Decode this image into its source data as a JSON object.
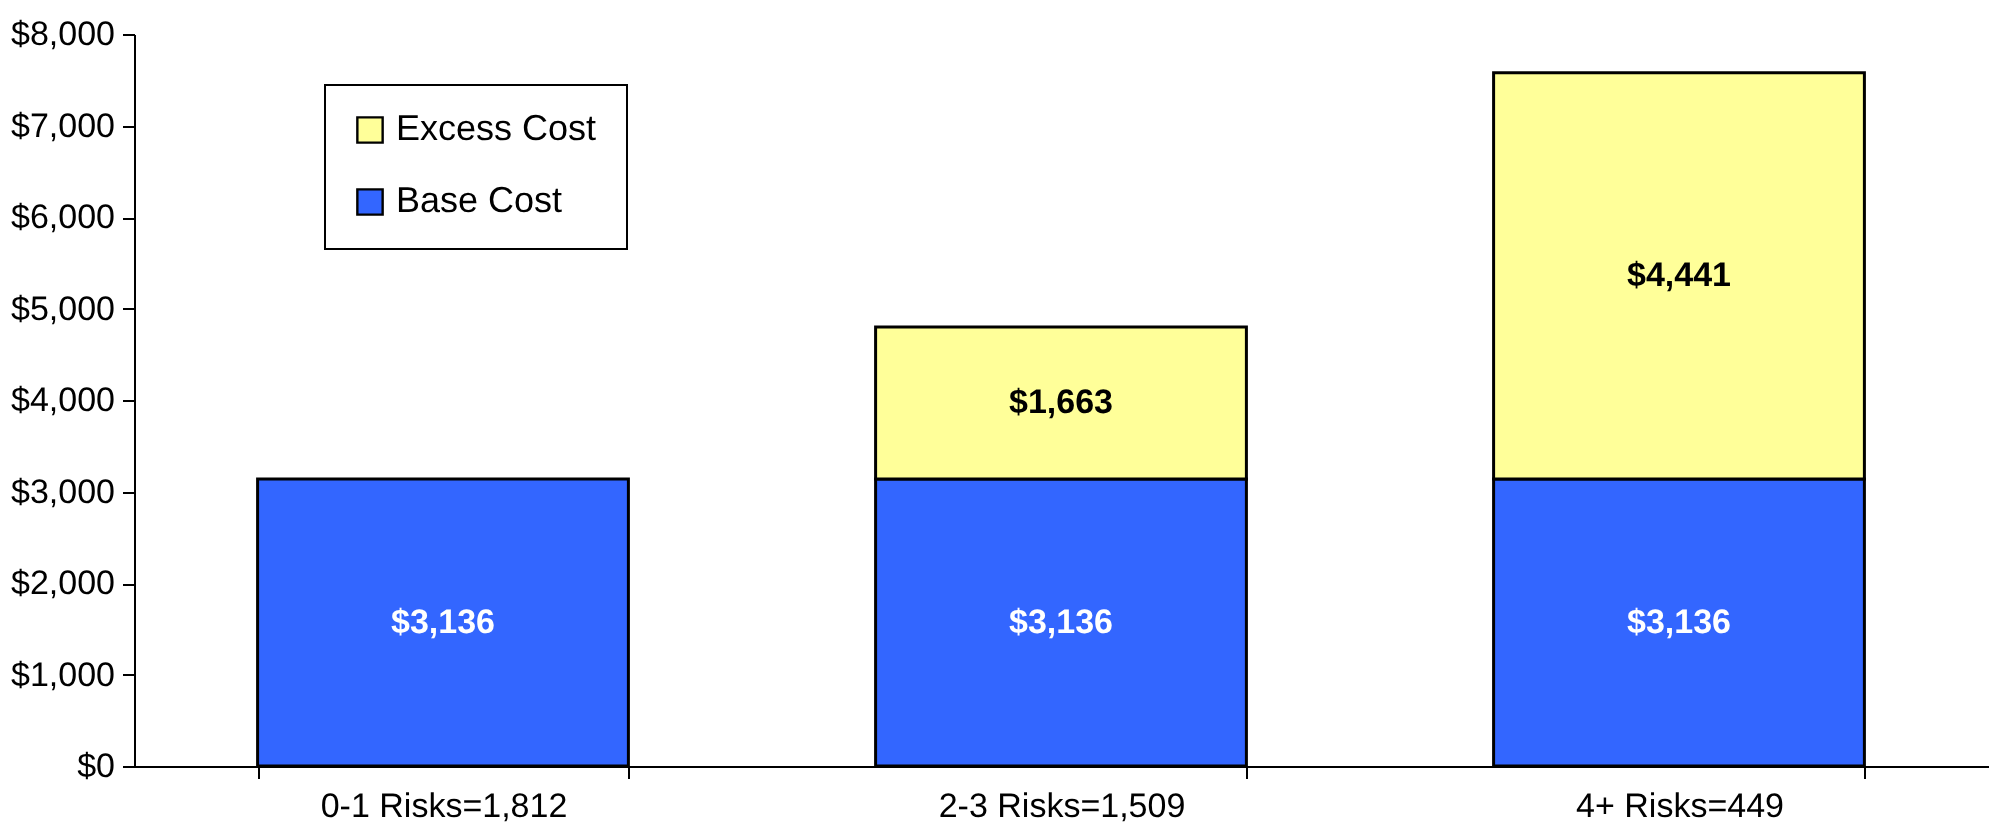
{
  "chart_data": {
    "type": "bar",
    "stacked": true,
    "categories": [
      "0-1 Risks=1,812",
      "2-3 Risks=1,509",
      "4+ Risks=449"
    ],
    "series": [
      {
        "name": "Base Cost",
        "color": "#3366ff",
        "values": [
          3136,
          3136,
          3136
        ],
        "value_labels": [
          "$3,136",
          "$3,136",
          "$3,136"
        ]
      },
      {
        "name": "Excess Cost",
        "color": "#ffff99",
        "values": [
          null,
          1663,
          4441
        ],
        "value_labels": [
          null,
          "$1,663",
          "$4,441"
        ]
      }
    ],
    "ylim": [
      0,
      8000
    ],
    "yticks": [
      {
        "value": 0,
        "label": "$0"
      },
      {
        "value": 1000,
        "label": "$1,000"
      },
      {
        "value": 2000,
        "label": "$2,000"
      },
      {
        "value": 3000,
        "label": "$3,000"
      },
      {
        "value": 4000,
        "label": "$4,000"
      },
      {
        "value": 5000,
        "label": "$5,000"
      },
      {
        "value": 6000,
        "label": "$6,000"
      },
      {
        "value": 7000,
        "label": "$7,000"
      },
      {
        "value": 8000,
        "label": "$8,000"
      }
    ],
    "grid": false,
    "legend": "top left"
  }
}
